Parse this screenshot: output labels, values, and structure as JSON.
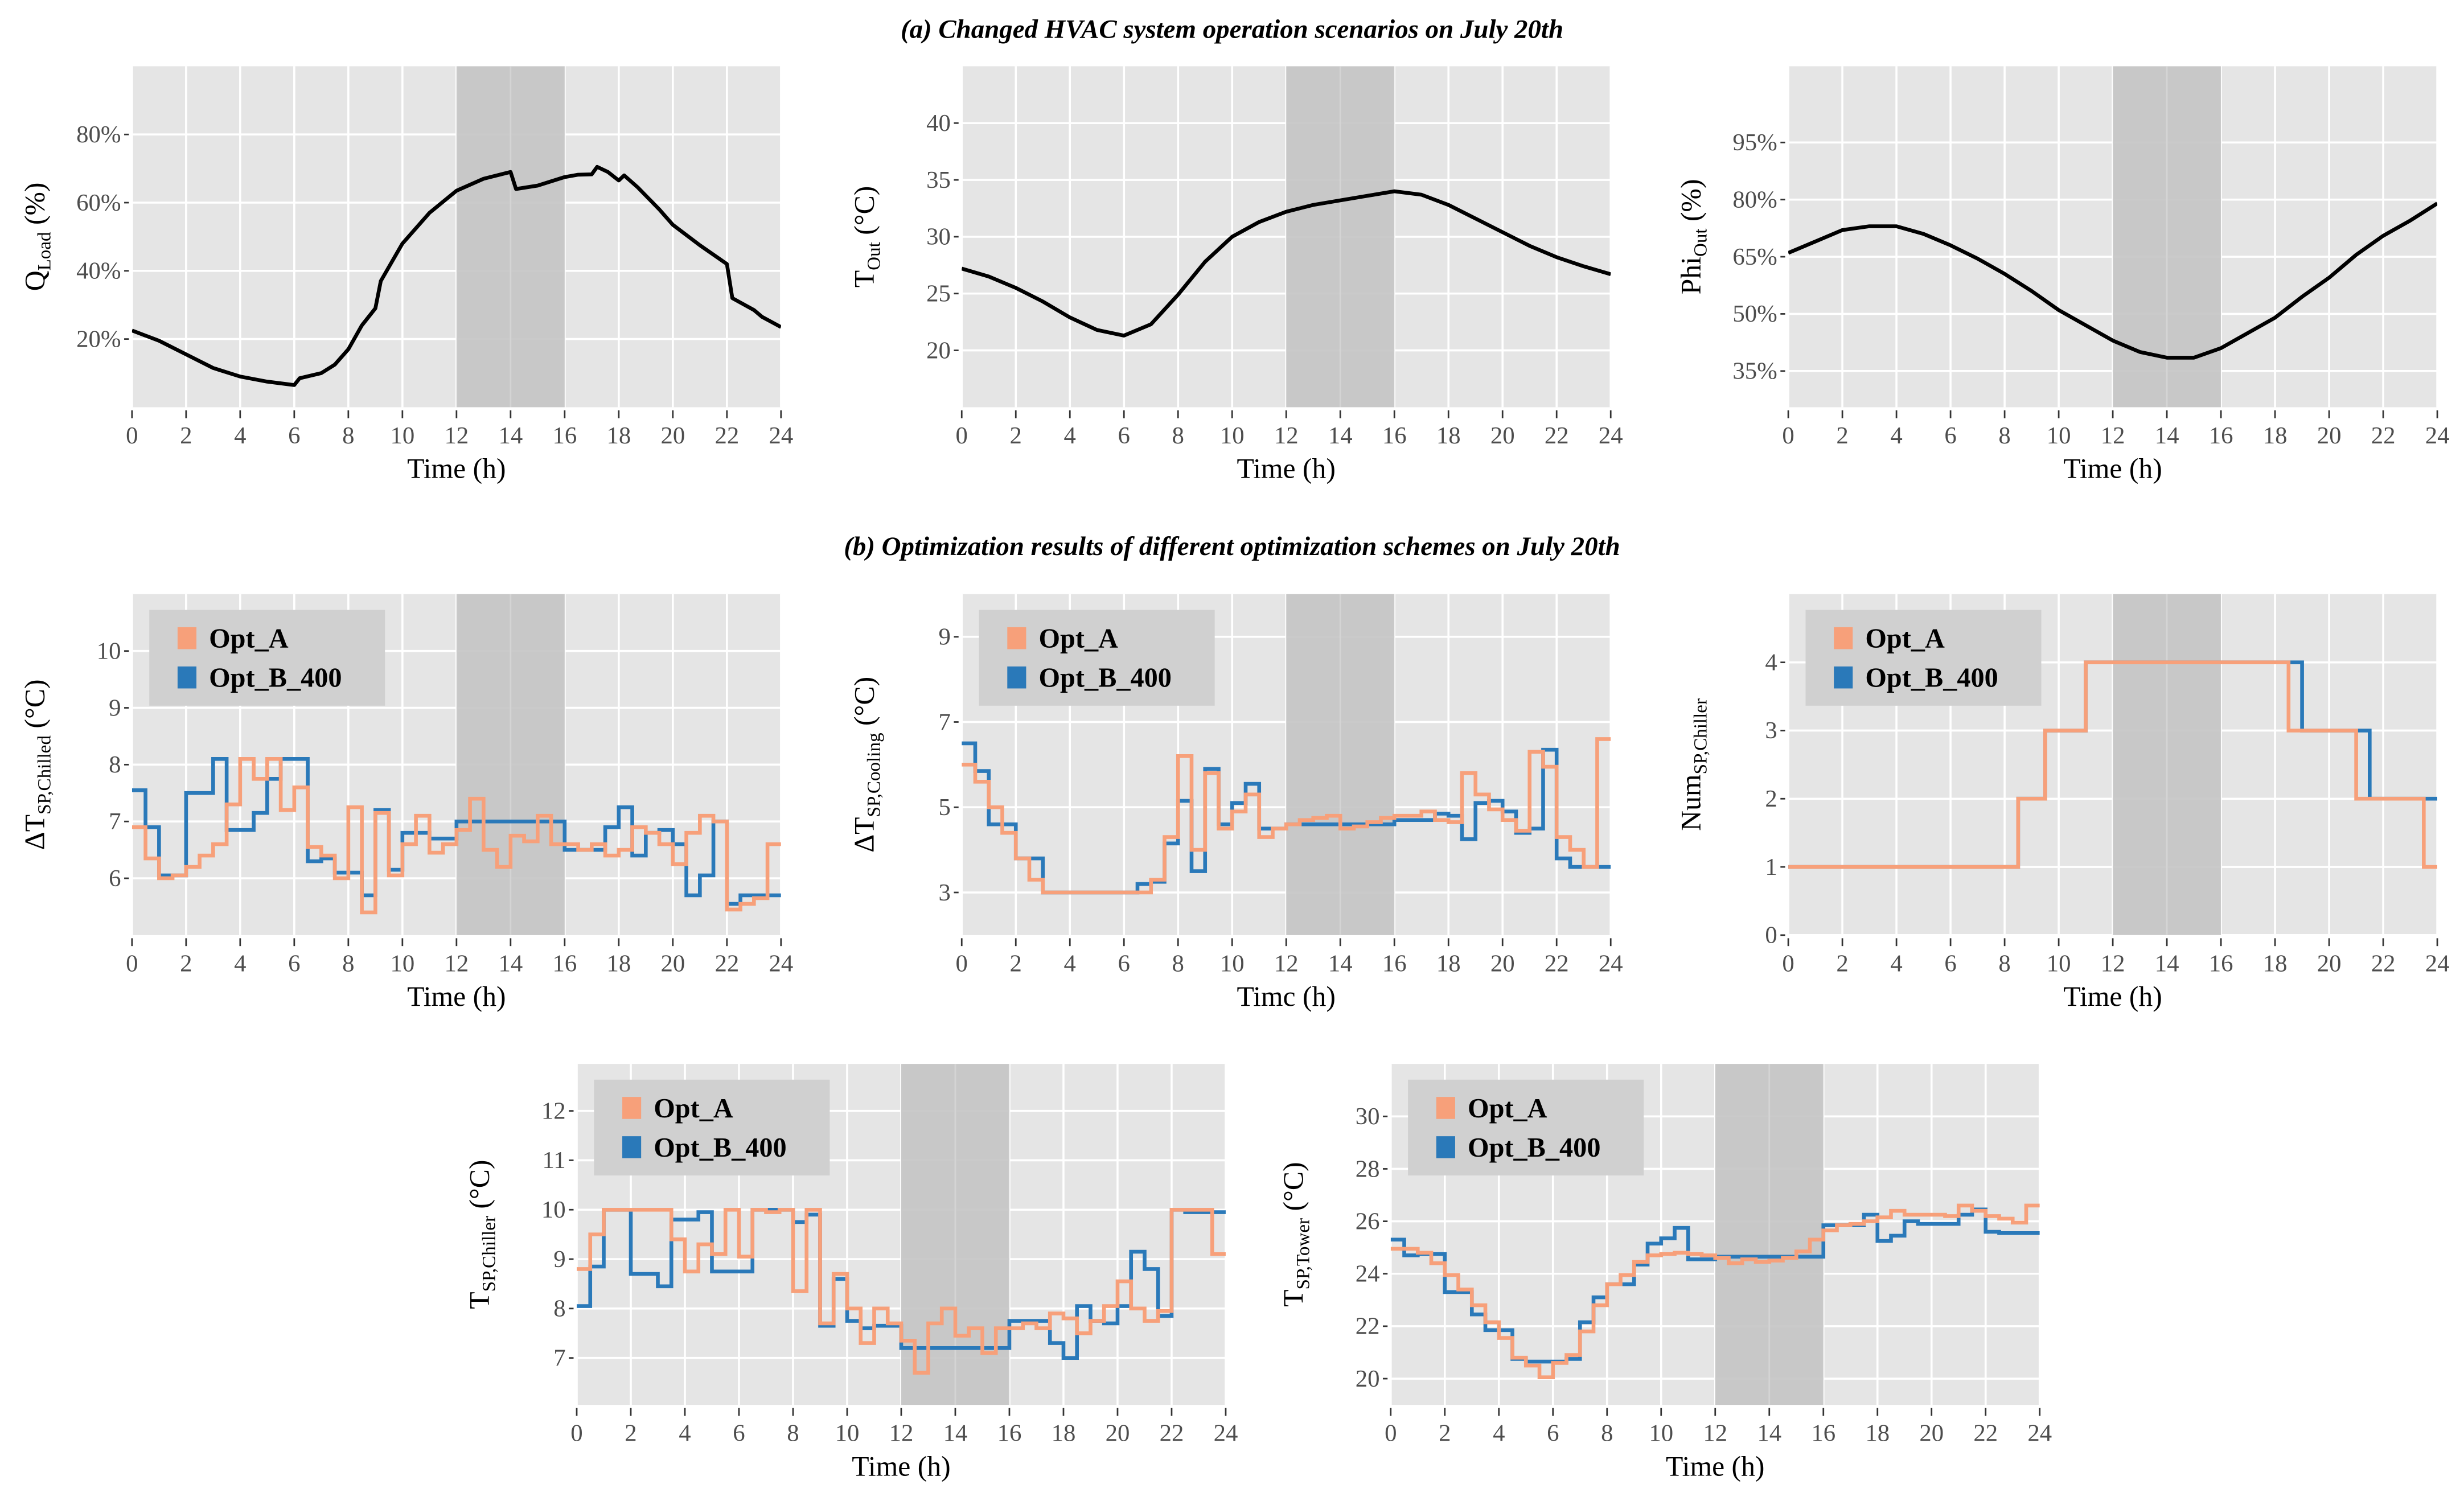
{
  "titles": {
    "a": "(a) Changed HVAC system operation scenarios on July 20th",
    "b": "(b) Optimization results of different optimization schemes on July 20th"
  },
  "colors": {
    "panel_bg": "#e5e5e5",
    "grid": "#ffffff",
    "shade": "#c4c4c4",
    "line": "#000000",
    "Opt_A": "#f7a07a",
    "Opt_B_400": "#2a79b9",
    "legend_bg": "#d0d0d0"
  },
  "chart_data": [
    {
      "type": "line",
      "group": "a",
      "xlabel": "Time  (h)",
      "ylabel": {
        "main": "Q",
        "sub": "Load",
        "unit": " (%)"
      },
      "xlim": [
        0,
        24
      ],
      "ylim": [
        0,
        100
      ],
      "xticks": [
        0,
        2,
        4,
        6,
        8,
        10,
        12,
        14,
        16,
        18,
        20,
        22,
        24
      ],
      "yticks": [
        20,
        40,
        60,
        80
      ],
      "ytick_labels": [
        "20%",
        "40%",
        "60%",
        "80%"
      ],
      "shaded": [
        12,
        16
      ],
      "grid": true,
      "series": [
        {
          "name": "Q_Load",
          "x": [
            0,
            1,
            2,
            3,
            4,
            5,
            6,
            6.2,
            7,
            7.5,
            8,
            8.5,
            9,
            9.2,
            10,
            11,
            12,
            13,
            14,
            14.2,
            15,
            16,
            16.5,
            17,
            17.2,
            17.6,
            18,
            18.2,
            18.7,
            19.5,
            20,
            21,
            22,
            22.2,
            23,
            23.3,
            24
          ],
          "y": [
            22.5,
            19.5,
            15.5,
            11.5,
            9,
            7.5,
            6.5,
            8.5,
            10,
            12.5,
            17,
            24,
            29,
            37,
            48,
            57,
            63.5,
            67,
            69,
            64,
            65,
            67.5,
            68.2,
            68.3,
            70.5,
            69,
            66.5,
            68,
            64.5,
            58,
            53.5,
            47.5,
            42,
            32,
            28.5,
            26.5,
            23.5
          ]
        }
      ]
    },
    {
      "type": "line",
      "group": "a",
      "xlabel": "Time  (h)",
      "ylabel": {
        "main": "T",
        "sub": "Out",
        "unit": " (°C)"
      },
      "xlim": [
        0,
        24
      ],
      "ylim": [
        15,
        45
      ],
      "xticks": [
        0,
        2,
        4,
        6,
        8,
        10,
        12,
        14,
        16,
        18,
        20,
        22,
        24
      ],
      "yticks": [
        20,
        25,
        30,
        35,
        40
      ],
      "ytick_labels": [
        "20",
        "25",
        "30",
        "35",
        "40"
      ],
      "shaded": [
        12,
        16
      ],
      "grid": true,
      "series": [
        {
          "name": "T_Out",
          "x": [
            0,
            1,
            2,
            3,
            4,
            5,
            6,
            7,
            8,
            9,
            10,
            11,
            12,
            13,
            14,
            15,
            16,
            17,
            18,
            19,
            20,
            21,
            22,
            23,
            24
          ],
          "y": [
            27.2,
            26.5,
            25.5,
            24.3,
            22.9,
            21.8,
            21.3,
            22.3,
            24.9,
            27.8,
            30,
            31.3,
            32.2,
            32.8,
            33.2,
            33.6,
            34,
            33.7,
            32.8,
            31.6,
            30.4,
            29.2,
            28.2,
            27.4,
            26.7
          ]
        }
      ]
    },
    {
      "type": "line",
      "group": "a",
      "xlabel": "Time  (h)",
      "ylabel": {
        "main": "Phi",
        "sub": "Out",
        "unit": " (%)"
      },
      "xlim": [
        0,
        24
      ],
      "ylim": [
        25.5,
        115
      ],
      "xticks": [
        0,
        2,
        4,
        6,
        8,
        10,
        12,
        14,
        16,
        18,
        20,
        22,
        24
      ],
      "yticks": [
        35,
        50,
        65,
        80,
        95
      ],
      "ytick_labels": [
        "35%",
        "50%",
        "65%",
        "80%",
        "95%"
      ],
      "shaded": [
        12,
        16
      ],
      "grid": true,
      "series": [
        {
          "name": "Phi_Out",
          "x": [
            0,
            1,
            2,
            3,
            4,
            5,
            6,
            7,
            8,
            9,
            10,
            11,
            12,
            13,
            14,
            15,
            16,
            17,
            18,
            19,
            20,
            21,
            22,
            23,
            24
          ],
          "y": [
            66,
            69,
            72,
            73,
            73,
            71,
            68,
            64.5,
            60.5,
            56,
            51,
            47,
            43,
            40,
            38.5,
            38.5,
            41,
            45,
            49,
            54.5,
            59.5,
            65.5,
            70.5,
            74.5,
            79
          ]
        }
      ]
    },
    {
      "type": "step",
      "group": "b",
      "xlabel": "Time  (h)",
      "ylabel": {
        "main": "ΔT",
        "sub": "SP,Chilled",
        "unit": " (°C)"
      },
      "xlim": [
        0,
        24
      ],
      "ylim": [
        5,
        11
      ],
      "xticks": [
        0,
        2,
        4,
        6,
        8,
        10,
        12,
        14,
        16,
        18,
        20,
        22,
        24
      ],
      "yticks": [
        6,
        7,
        8,
        9,
        10
      ],
      "ytick_labels": [
        "6",
        "7",
        "8",
        "9",
        "10"
      ],
      "shaded": [
        12,
        16
      ],
      "grid": true,
      "legend": "top-left",
      "step_h": 0.5,
      "series": [
        {
          "name": "Opt_A",
          "values": [
            6.9,
            6.35,
            6.0,
            6.05,
            6.2,
            6.4,
            6.6,
            7.3,
            8.1,
            7.75,
            8.1,
            7.2,
            7.6,
            6.55,
            6.4,
            6.0,
            7.25,
            5.4,
            7.15,
            6.05,
            6.6,
            7.1,
            6.45,
            6.6,
            6.85,
            7.4,
            6.5,
            6.2,
            6.75,
            6.65,
            7.1,
            6.6,
            6.6,
            6.5,
            6.6,
            6.4,
            6.5,
            6.9,
            6.8,
            6.6,
            6.25,
            6.8,
            7.1,
            7.0,
            5.45,
            5.55,
            5.65,
            6.6
          ]
        },
        {
          "name": "Opt_B_400",
          "values": [
            7.55,
            6.9,
            6.05,
            6.05,
            7.5,
            7.5,
            8.1,
            6.85,
            6.85,
            7.15,
            7.75,
            8.1,
            8.1,
            6.3,
            6.35,
            6.1,
            6.1,
            5.7,
            7.2,
            6.15,
            6.8,
            6.8,
            6.7,
            6.7,
            7.0,
            7.0,
            7.0,
            7.0,
            7.0,
            7.0,
            7.0,
            7.0,
            6.5,
            6.5,
            6.5,
            6.9,
            7.25,
            6.4,
            6.8,
            6.85,
            6.6,
            5.7,
            6.05,
            7.0,
            5.55,
            5.7,
            5.7,
            5.7
          ]
        }
      ]
    },
    {
      "type": "step",
      "group": "b",
      "xlabel": "Timc  (h)",
      "ylabel": {
        "main": "ΔT",
        "sub": "SP,Cooling",
        "unit": " (°C)"
      },
      "xlim": [
        0,
        24
      ],
      "ylim": [
        2,
        10
      ],
      "xticks": [
        0,
        2,
        4,
        6,
        8,
        10,
        12,
        14,
        16,
        18,
        20,
        22,
        24
      ],
      "yticks": [
        3,
        5,
        7,
        9
      ],
      "ytick_labels": [
        "3",
        "5",
        "7",
        "9"
      ],
      "shaded": [
        12,
        16
      ],
      "grid": true,
      "legend": "top-left",
      "step_h": 0.5,
      "series": [
        {
          "name": "Opt_A",
          "values": [
            6.0,
            5.6,
            5.0,
            4.4,
            3.8,
            3.3,
            3.0,
            3.0,
            3.0,
            3.0,
            3.0,
            3.0,
            3.0,
            3.0,
            3.3,
            4.3,
            6.2,
            4.0,
            5.8,
            4.5,
            4.9,
            5.3,
            4.3,
            4.5,
            4.6,
            4.7,
            4.75,
            4.8,
            4.5,
            4.55,
            4.65,
            4.75,
            4.8,
            4.8,
            4.9,
            4.7,
            4.65,
            5.8,
            5.3,
            4.95,
            4.7,
            4.45,
            6.3,
            5.95,
            4.3,
            4.0,
            3.6,
            6.6
          ]
        },
        {
          "name": "Opt_B_400",
          "values": [
            6.5,
            5.85,
            4.6,
            4.6,
            3.8,
            3.8,
            3.0,
            3.0,
            3.0,
            3.0,
            3.0,
            3.0,
            3.0,
            3.2,
            3.25,
            4.15,
            5.15,
            3.5,
            5.9,
            4.6,
            5.1,
            5.55,
            4.5,
            4.5,
            4.6,
            4.6,
            4.6,
            4.6,
            4.6,
            4.6,
            4.6,
            4.6,
            4.7,
            4.7,
            4.7,
            4.85,
            4.8,
            4.25,
            5.1,
            5.15,
            4.9,
            4.4,
            4.5,
            6.35,
            3.8,
            3.6,
            3.6,
            3.6
          ]
        }
      ]
    },
    {
      "type": "step",
      "group": "b",
      "xlabel": "Time  (h)",
      "ylabel": {
        "main": "Num",
        "sub": "SP,Chiller",
        "unit": ""
      },
      "xlim": [
        0,
        24
      ],
      "ylim": [
        0,
        5
      ],
      "xticks": [
        0,
        2,
        4,
        6,
        8,
        10,
        12,
        14,
        16,
        18,
        20,
        22,
        24
      ],
      "yticks": [
        0,
        1,
        2,
        3,
        4
      ],
      "ytick_labels": [
        "0",
        "1",
        "2",
        "3",
        "4"
      ],
      "shaded": [
        12,
        16
      ],
      "grid": true,
      "legend": "top-left",
      "step_h": 0.5,
      "series": [
        {
          "name": "Opt_A",
          "values": [
            1,
            1,
            1,
            1,
            1,
            1,
            1,
            1,
            1,
            1,
            1,
            1,
            1,
            1,
            1,
            1,
            1,
            2,
            2,
            3,
            3,
            3,
            4,
            4,
            4,
            4,
            4,
            4,
            4,
            4,
            4,
            4,
            4,
            4,
            4,
            4,
            4,
            3,
            3,
            3,
            3,
            3,
            2,
            2,
            2,
            2,
            2,
            1
          ]
        },
        {
          "name": "Opt_B_400",
          "values": [
            1,
            1,
            1,
            1,
            1,
            1,
            1,
            1,
            1,
            1,
            1,
            1,
            1,
            1,
            1,
            1,
            1,
            2,
            2,
            3,
            3,
            3,
            4,
            4,
            4,
            4,
            4,
            4,
            4,
            4,
            4,
            4,
            4,
            4,
            4,
            4,
            4,
            4,
            3,
            3,
            3,
            3,
            3,
            2,
            2,
            2,
            2,
            2
          ]
        }
      ]
    },
    {
      "type": "step",
      "group": "b",
      "xlabel": "Time  (h)",
      "ylabel": {
        "main": "T",
        "sub": "SP,Chiller",
        "unit": " (°C)"
      },
      "xlim": [
        0,
        24
      ],
      "ylim": [
        6.05,
        12.95
      ],
      "xticks": [
        0,
        2,
        4,
        6,
        8,
        10,
        12,
        14,
        16,
        18,
        20,
        22,
        24
      ],
      "yticks": [
        7,
        8,
        9,
        10,
        11,
        12
      ],
      "ytick_labels": [
        "7",
        "8",
        "9",
        "10",
        "11",
        "12"
      ],
      "shaded": [
        12,
        16
      ],
      "grid": true,
      "legend": "top-left",
      "step_h": 0.5,
      "series": [
        {
          "name": "Opt_A",
          "values": [
            8.8,
            9.5,
            10,
            10,
            10,
            10,
            10,
            9.4,
            8.75,
            9.3,
            9.1,
            10,
            9.05,
            10,
            9.95,
            10,
            8.35,
            10,
            7.7,
            8.7,
            8.0,
            7.3,
            8.0,
            7.7,
            7.35,
            6.7,
            7.7,
            8.0,
            7.45,
            7.6,
            7.1,
            7.6,
            7.6,
            7.7,
            7.6,
            7.9,
            7.8,
            7.5,
            7.75,
            8.05,
            8.55,
            8.0,
            7.75,
            7.95,
            10,
            10,
            10,
            9.1
          ]
        },
        {
          "name": "Opt_B_400",
          "values": [
            8.05,
            8.85,
            10,
            10,
            8.7,
            8.7,
            8.45,
            9.8,
            9.8,
            9.95,
            8.75,
            8.75,
            8.75,
            10,
            10,
            10,
            9.75,
            9.9,
            7.65,
            8.6,
            7.75,
            7.6,
            7.65,
            7.65,
            7.2,
            7.2,
            7.2,
            7.2,
            7.2,
            7.2,
            7.2,
            7.2,
            7.75,
            7.75,
            7.75,
            7.3,
            7.0,
            8.05,
            7.75,
            7.7,
            8.05,
            9.15,
            8.8,
            7.85,
            10,
            9.95,
            9.95,
            9.95
          ]
        }
      ]
    },
    {
      "type": "step",
      "group": "b",
      "xlabel": "Time  (h)",
      "ylabel": {
        "main": "T",
        "sub": "SP,Tower",
        "unit": " (°C)"
      },
      "xlim": [
        0,
        24
      ],
      "ylim": [
        19,
        32
      ],
      "xticks": [
        0,
        2,
        4,
        6,
        8,
        10,
        12,
        14,
        16,
        18,
        20,
        22,
        24
      ],
      "yticks": [
        20,
        22,
        24,
        26,
        28,
        30
      ],
      "ytick_labels": [
        "20",
        "22",
        "24",
        "26",
        "28",
        "30"
      ],
      "shaded": [
        12,
        16
      ],
      "grid": true,
      "legend": "top-left",
      "step_h": 0.5,
      "series": [
        {
          "name": "Opt_A",
          "values": [
            24.95,
            24.95,
            24.8,
            24.4,
            23.95,
            23.4,
            22.8,
            22.15,
            21.55,
            20.8,
            20.5,
            20.05,
            20.6,
            20.9,
            21.8,
            22.8,
            23.6,
            23.95,
            24.45,
            24.7,
            24.75,
            24.8,
            24.75,
            24.7,
            24.6,
            24.4,
            24.55,
            24.45,
            24.5,
            24.6,
            24.85,
            25.3,
            25.65,
            25.85,
            25.9,
            26.0,
            26.15,
            26.4,
            26.25,
            26.25,
            26.25,
            26.2,
            26.6,
            26.4,
            26.2,
            26.1,
            25.95,
            26.6
          ]
        },
        {
          "name": "Opt_B_400",
          "values": [
            25.3,
            24.7,
            24.75,
            24.75,
            23.3,
            23.3,
            22.45,
            21.85,
            21.85,
            20.75,
            20.65,
            20.65,
            20.65,
            20.75,
            22.15,
            23.1,
            23.6,
            23.6,
            24.35,
            25.15,
            25.35,
            25.75,
            24.55,
            24.55,
            24.65,
            24.65,
            24.65,
            24.65,
            24.65,
            24.65,
            24.65,
            24.65,
            25.85,
            25.85,
            25.85,
            26.25,
            25.25,
            25.45,
            26.0,
            25.9,
            25.9,
            25.9,
            26.25,
            26.45,
            25.6,
            25.55,
            25.55,
            25.55
          ]
        }
      ]
    }
  ]
}
